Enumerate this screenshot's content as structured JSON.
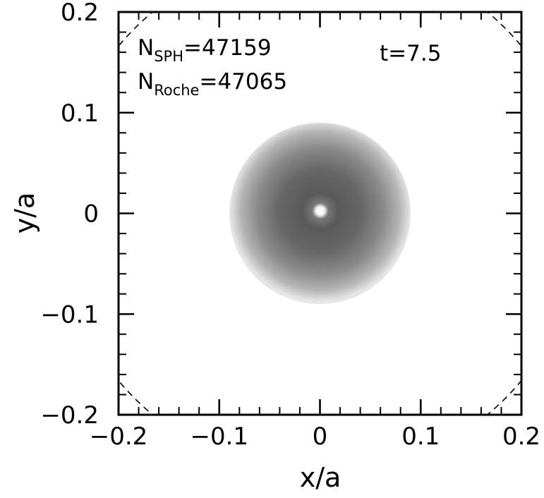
{
  "chart_data": {
    "type": "heatmap",
    "title": "",
    "xlabel": "x/a",
    "ylabel": "y/a",
    "xlim": [
      -0.2,
      0.2
    ],
    "ylim": [
      -0.2,
      0.2
    ],
    "x_ticks": [
      -0.2,
      -0.1,
      0,
      0.1,
      0.2
    ],
    "y_ticks": [
      -0.2,
      -0.1,
      0,
      0.1,
      0.2
    ],
    "x_tick_labels": [
      "−0.2",
      "−0.1",
      "0",
      "0.1",
      "0.2"
    ],
    "y_tick_labels": [
      "−0.2",
      "−0.1",
      "0",
      "0.1",
      "0.2"
    ],
    "grid": false,
    "colormap": "grayscale density, darker = denser",
    "annotations": {
      "n_sph_main": "N",
      "n_sph_sub": "SPH",
      "n_sph_value": "=47159",
      "n_roche_main": "N",
      "n_roche_sub": "Roche",
      "n_roche_value": "=47065",
      "time": "t=7.5"
    },
    "density_blob": {
      "center": [
        0,
        0
      ],
      "radius": 0.09,
      "core_hole_radius": 0.008
    },
    "roche_lobe_dashed_arc": {
      "center": [
        0,
        0
      ],
      "radius": 0.26
    }
  }
}
